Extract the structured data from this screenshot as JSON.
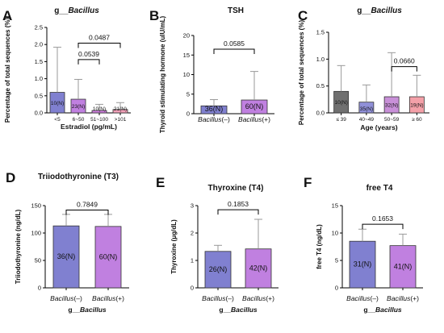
{
  "chart_data": [
    {
      "panel": "A",
      "type": "bar",
      "title": "g__Bacillus",
      "title_parts": [
        {
          "text": "g__"
        },
        {
          "text": "Bacillus",
          "italic": true
        }
      ],
      "ylabel": "Percentage of total sequences (%)",
      "xlabel": "Estradiol (pg/mL)",
      "ylim": [
        0,
        2.5
      ],
      "yticks": [
        0.0,
        0.5,
        1.0,
        1.5,
        2.0,
        2.5
      ],
      "ytick_labels": [
        "0.0",
        "0.5",
        "1.0",
        "1.5",
        "2.0",
        "2.5"
      ],
      "categories": [
        "<5",
        "6~50",
        "51~100",
        ">101"
      ],
      "values": [
        0.6,
        0.4,
        0.07,
        0.1
      ],
      "error_upper": [
        1.92,
        0.98,
        0.25,
        0.3
      ],
      "n_labels": [
        "10(N)",
        "23(N)",
        "10(N)",
        "21(N)"
      ],
      "colors": [
        "#8080d0",
        "#c080e0",
        "#d080e0",
        "#f0a0b8"
      ],
      "comparisons": [
        {
          "from": 1,
          "to": 3,
          "p": "0.0487"
        },
        {
          "from": 1,
          "to": 2,
          "p": "0.0539"
        }
      ]
    },
    {
      "panel": "B",
      "type": "bar",
      "title": "TSH",
      "title_parts": [
        {
          "text": "TSH"
        }
      ],
      "ylabel": "Thyroid stimulating hormone (uIU/mL)",
      "xlabel": "",
      "ylim": [
        0,
        20
      ],
      "yticks": [
        0,
        5,
        10,
        15,
        20
      ],
      "ytick_labels": [
        "0",
        "5",
        "10",
        "15",
        "20"
      ],
      "categories": [
        "Bacillus(–)",
        "Bacillus(+)"
      ],
      "category_parts": [
        [
          {
            "text": "Bacillus",
            "italic": true
          },
          {
            "text": "(–)"
          }
        ],
        [
          {
            "text": "Bacillus",
            "italic": true
          },
          {
            "text": "(+)"
          }
        ]
      ],
      "values": [
        2.0,
        3.5
      ],
      "error_upper": [
        3.6,
        10.8
      ],
      "n_labels": [
        "36(N)",
        "60(N)"
      ],
      "colors": [
        "#8080d0",
        "#c080e0"
      ],
      "comparisons": [
        {
          "from": 0,
          "to": 1,
          "p": "0.0585"
        }
      ]
    },
    {
      "panel": "C",
      "type": "bar",
      "title": "g__Bacillus",
      "title_parts": [
        {
          "text": "g__"
        },
        {
          "text": "Bacillus",
          "italic": true
        }
      ],
      "ylabel": "Percentage of total sequences (%)",
      "xlabel": "Age (years)",
      "ylim": [
        0,
        1.5
      ],
      "yticks": [
        0.0,
        0.5,
        1.0,
        1.5
      ],
      "ytick_labels": [
        "0.0",
        "0.5",
        "1.0",
        "1.5"
      ],
      "categories": [
        "≤ 39",
        "40~49",
        "50~59",
        "≥ 60"
      ],
      "values": [
        0.4,
        0.2,
        0.3,
        0.3
      ],
      "error_upper": [
        0.88,
        0.52,
        1.12,
        0.7
      ],
      "n_labels": [
        "10(N)",
        "35(N)",
        "32(N)",
        "19(N)"
      ],
      "colors": [
        "#707070",
        "#9090d8",
        "#c890d8",
        "#f4a0a8"
      ],
      "comparisons": [
        {
          "from": 2,
          "to": 3,
          "p": "0.0660"
        }
      ]
    },
    {
      "panel": "D",
      "type": "bar",
      "title": "Triiodothyronine (T3)",
      "title_parts": [
        {
          "text": "Triiodothyronine (T3)"
        }
      ],
      "ylabel": "Triiodothyronine (ng/dL)",
      "xlabel": "g__Bacillus",
      "xlabel_parts": [
        {
          "text": "g__"
        },
        {
          "text": "Bacillus",
          "italic": true
        }
      ],
      "ylim": [
        0,
        150
      ],
      "yticks": [
        0,
        50,
        100,
        150
      ],
      "ytick_labels": [
        "0",
        "50",
        "100",
        "150"
      ],
      "categories": [
        "Bacillus(–)",
        "Bacillus(+)"
      ],
      "category_parts": [
        [
          {
            "text": "Bacillus",
            "italic": true
          },
          {
            "text": "(–)"
          }
        ],
        [
          {
            "text": "Bacillus",
            "italic": true
          },
          {
            "text": "(+)"
          }
        ]
      ],
      "values": [
        113,
        112
      ],
      "error_upper": [
        134,
        134
      ],
      "n_labels": [
        "36(N)",
        "60(N)"
      ],
      "colors": [
        "#8080d0",
        "#c080e0"
      ],
      "comparisons": [
        {
          "from": 0,
          "to": 1,
          "p": "0.7849"
        }
      ]
    },
    {
      "panel": "E",
      "type": "bar",
      "title": "Thyroxine (T4)",
      "title_parts": [
        {
          "text": "Thyroxine (T4)"
        }
      ],
      "ylabel": "Thyroxine (μg/dL)",
      "xlabel": "g__Bacillus",
      "xlabel_parts": [
        {
          "text": "g__"
        },
        {
          "text": "Bacillus",
          "italic": true
        }
      ],
      "ylim": [
        0,
        3
      ],
      "yticks": [
        0,
        1,
        2,
        3
      ],
      "ytick_labels": [
        "0",
        "1",
        "2",
        "3"
      ],
      "categories": [
        "Bacillus(–)",
        "Bacillus(+)"
      ],
      "category_parts": [
        [
          {
            "text": "Bacillus",
            "italic": true
          },
          {
            "text": "(–)"
          }
        ],
        [
          {
            "text": "Bacillus",
            "italic": true
          },
          {
            "text": "(+)"
          }
        ]
      ],
      "values": [
        1.33,
        1.42
      ],
      "error_upper": [
        1.55,
        2.5
      ],
      "n_labels": [
        "26(N)",
        "42(N)"
      ],
      "colors": [
        "#8080d0",
        "#c080e0"
      ],
      "comparisons": [
        {
          "from": 0,
          "to": 1,
          "p": "0.1853"
        }
      ]
    },
    {
      "panel": "F",
      "type": "bar",
      "title": "free T4",
      "title_parts": [
        {
          "text": "free T4"
        }
      ],
      "ylabel": "free T4 (ng/dL)",
      "xlabel": "g__Bacillus",
      "xlabel_parts": [
        {
          "text": "g__"
        },
        {
          "text": "Bacillus",
          "italic": true
        }
      ],
      "ylim": [
        0,
        15
      ],
      "yticks": [
        0,
        5,
        10,
        15
      ],
      "ytick_labels": [
        "0",
        "5",
        "10",
        "15"
      ],
      "categories": [
        "Bacillus(–)",
        "Bacillus(+)"
      ],
      "category_parts": [
        [
          {
            "text": "Bacillus",
            "italic": true
          },
          {
            "text": "(–)"
          }
        ],
        [
          {
            "text": "Bacillus",
            "italic": true
          },
          {
            "text": "(+)"
          }
        ]
      ],
      "values": [
        8.5,
        7.7
      ],
      "error_upper": [
        10.7,
        9.8
      ],
      "n_labels": [
        "31(N)",
        "41(N)"
      ],
      "colors": [
        "#8080d0",
        "#c080e0"
      ],
      "comparisons": [
        {
          "from": 0,
          "to": 1,
          "p": "0.1653"
        }
      ]
    }
  ]
}
